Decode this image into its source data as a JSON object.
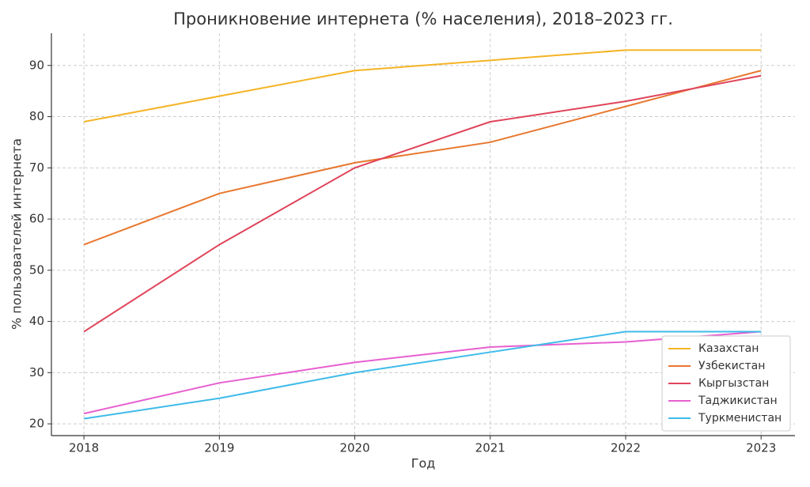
{
  "chart_data": {
    "type": "line",
    "title": "Проникновение интернета (% населения), 2018–2023 гг.",
    "xlabel": "Год",
    "ylabel": "% пользователей интернета",
    "x": [
      2018,
      2019,
      2020,
      2021,
      2022,
      2023
    ],
    "series": [
      {
        "name": "Казахстан",
        "color": "#f5b324",
        "values": [
          79,
          84,
          89,
          91,
          93,
          93
        ]
      },
      {
        "name": "Узбекистан",
        "color": "#e8772e",
        "values": [
          55,
          65,
          71,
          75,
          82,
          89
        ]
      },
      {
        "name": "Кыргызстан",
        "color": "#e0445a",
        "values": [
          38,
          55,
          70,
          79,
          83,
          88
        ]
      },
      {
        "name": "Таджикистан",
        "color": "#e75fd0",
        "values": [
          22,
          28,
          32,
          35,
          36,
          38
        ]
      },
      {
        "name": "Туркменистан",
        "color": "#3fbbea",
        "values": [
          21,
          25,
          30,
          34,
          38,
          38
        ]
      }
    ],
    "xlim": [
      2017.76,
      2023.25
    ],
    "ylim": [
      17.7,
      96.3
    ],
    "xticks": [
      2018,
      2019,
      2020,
      2021,
      2022,
      2023
    ],
    "yticks": [
      20,
      30,
      40,
      50,
      60,
      70,
      80,
      90
    ],
    "grid": true,
    "legend": "lower right"
  }
}
